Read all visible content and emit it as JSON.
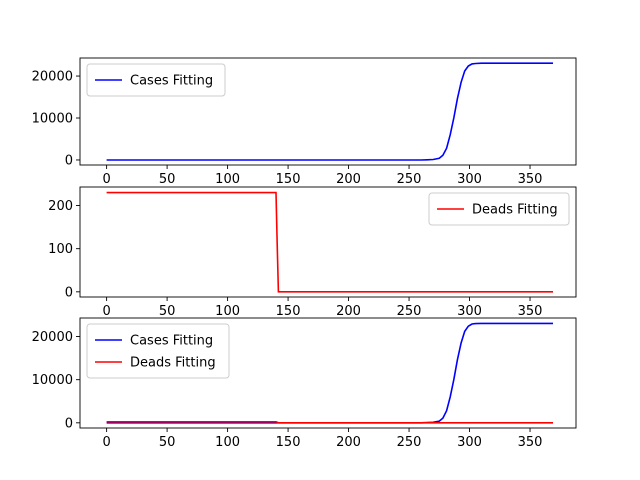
{
  "chart_data": [
    {
      "type": "line",
      "xlim": [
        -22,
        388
      ],
      "ylim": [
        -1200,
        24300
      ],
      "xticks": [
        0,
        50,
        100,
        150,
        200,
        250,
        300,
        350
      ],
      "yticks": [
        0,
        10000,
        20000
      ],
      "legend": "top-left",
      "grid": false,
      "series": [
        {
          "name": "Cases Fitting",
          "color": "#0000ff",
          "x": [
            0,
            260,
            265,
            270,
            275,
            278,
            281,
            284,
            287,
            290,
            293,
            296,
            299,
            302,
            305,
            310,
            320,
            369
          ],
          "y": [
            0,
            0,
            50,
            120,
            400,
            1100,
            2800,
            6000,
            10000,
            14600,
            18500,
            21200,
            22400,
            22900,
            23000,
            23050,
            23050,
            23050
          ]
        }
      ]
    },
    {
      "type": "line",
      "xlim": [
        -22,
        388
      ],
      "ylim": [
        -12,
        243
      ],
      "xticks": [
        0,
        50,
        100,
        150,
        200,
        250,
        300,
        350
      ],
      "yticks": [
        0,
        100,
        200
      ],
      "legend": "top-right",
      "grid": false,
      "series": [
        {
          "name": "Deads Fitting",
          "color": "#ff0000",
          "x": [
            0,
            140,
            141,
            142,
            369
          ],
          "y": [
            230,
            230,
            110,
            0,
            0
          ]
        }
      ]
    },
    {
      "type": "line",
      "xlim": [
        -22,
        388
      ],
      "ylim": [
        -1200,
        24300
      ],
      "xticks": [
        0,
        50,
        100,
        150,
        200,
        250,
        300,
        350
      ],
      "yticks": [
        0,
        10000,
        20000
      ],
      "legend": "top-left",
      "grid": false,
      "series": [
        {
          "name": "Cases Fitting",
          "color": "#0000ff",
          "x": [
            0,
            260,
            265,
            270,
            275,
            278,
            281,
            284,
            287,
            290,
            293,
            296,
            299,
            302,
            305,
            310,
            320,
            369
          ],
          "y": [
            0,
            0,
            50,
            120,
            400,
            1100,
            2800,
            6000,
            10000,
            14600,
            18500,
            21200,
            22400,
            22900,
            23000,
            23050,
            23050,
            23050
          ]
        },
        {
          "name": "Deads Fitting",
          "color": "#ff0000",
          "x": [
            0,
            140,
            141,
            142,
            369
          ],
          "y": [
            230,
            230,
            110,
            0,
            0
          ]
        }
      ]
    }
  ]
}
